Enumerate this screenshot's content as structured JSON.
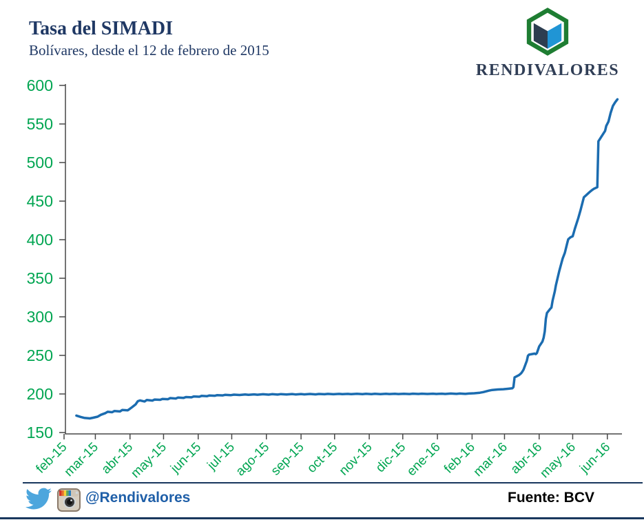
{
  "header": {
    "title": "Tasa del SIMADI",
    "subtitle": "Bolívares, desde el 12 de febrero de 2015",
    "logo_text": "RENDIVALORES"
  },
  "footer": {
    "social_handle": "@Rendivalores",
    "source": "Fuente: BCV"
  },
  "colors": {
    "title_navy": "#1f3864",
    "axis_green": "#00a551",
    "line_blue": "#1b6cb0",
    "axis_gray": "#474747",
    "handle_blue": "#1f5fa8",
    "separator_navy": "#17365d",
    "logo_green": "#1e7d32",
    "logo_cube_dark": "#2d3e50",
    "logo_cube_blue": "#2095d5",
    "twitter_blue": "#4da6dd",
    "source_black": "#000000"
  },
  "chart_data": {
    "type": "line",
    "title": "Tasa del SIMADI",
    "subtitle": "Bolívares, desde el 12 de febrero de 2015",
    "series_name": "Tasa del SIMADI",
    "grid": false,
    "legend": false,
    "ylim": [
      150,
      600
    ],
    "xlim": [
      "2015-02-12",
      "2016-06-10"
    ],
    "y_ticks": [
      600,
      550,
      500,
      450,
      400,
      350,
      300,
      250,
      200,
      150
    ],
    "x_ticks": [
      {
        "label": "feb-15",
        "date": "2015-02-01"
      },
      {
        "label": "mar-15",
        "date": "2015-03-01"
      },
      {
        "label": "abr-15",
        "date": "2015-04-01"
      },
      {
        "label": "may-15",
        "date": "2015-05-01"
      },
      {
        "label": "jun-15",
        "date": "2015-06-01"
      },
      {
        "label": "jul-15",
        "date": "2015-07-01"
      },
      {
        "label": "ago-15",
        "date": "2015-08-01"
      },
      {
        "label": "sep-15",
        "date": "2015-09-01"
      },
      {
        "label": "oct-15",
        "date": "2015-10-01"
      },
      {
        "label": "nov-15",
        "date": "2015-11-01"
      },
      {
        "label": "dic-15",
        "date": "2015-12-01"
      },
      {
        "label": "ene-16",
        "date": "2016-01-01"
      },
      {
        "label": "feb-16",
        "date": "2016-02-01"
      },
      {
        "label": "mar-16",
        "date": "2016-03-01"
      },
      {
        "label": "abr-16",
        "date": "2016-04-01"
      },
      {
        "label": "may-16",
        "date": "2016-05-01"
      },
      {
        "label": "jun-16",
        "date": "2016-06-01"
      }
    ],
    "points": [
      [
        "2015-02-12",
        172.0
      ],
      [
        "2015-02-16",
        170.2
      ],
      [
        "2015-02-19",
        169.0
      ],
      [
        "2015-02-24",
        168.3
      ],
      [
        "2015-02-27",
        169.2
      ],
      [
        "2015-03-03",
        170.5
      ],
      [
        "2015-03-06",
        173.0
      ],
      [
        "2015-03-10",
        175.2
      ],
      [
        "2015-03-12",
        176.9
      ],
      [
        "2015-03-16",
        176.3
      ],
      [
        "2015-03-18",
        177.9
      ],
      [
        "2015-03-23",
        177.3
      ],
      [
        "2015-03-25",
        179.2
      ],
      [
        "2015-03-30",
        178.8
      ],
      [
        "2015-04-01",
        180.9
      ],
      [
        "2015-04-03",
        183.0
      ],
      [
        "2015-04-06",
        186.5
      ],
      [
        "2015-04-08",
        190.6
      ],
      [
        "2015-04-10",
        191.6
      ],
      [
        "2015-04-14",
        190.3
      ],
      [
        "2015-04-16",
        192.1
      ],
      [
        "2015-04-21",
        191.4
      ],
      [
        "2015-04-23",
        192.8
      ],
      [
        "2015-04-28",
        192.4
      ],
      [
        "2015-04-30",
        193.6
      ],
      [
        "2015-05-05",
        193.2
      ],
      [
        "2015-05-07",
        194.6
      ],
      [
        "2015-05-12",
        194.1
      ],
      [
        "2015-05-14",
        195.4
      ],
      [
        "2015-05-19",
        194.9
      ],
      [
        "2015-05-21",
        196.0
      ],
      [
        "2015-05-26",
        195.6
      ],
      [
        "2015-05-28",
        196.8
      ],
      [
        "2015-06-02",
        196.4
      ],
      [
        "2015-06-04",
        197.5
      ],
      [
        "2015-06-09",
        197.1
      ],
      [
        "2015-06-11",
        198.0
      ],
      [
        "2015-06-16",
        197.7
      ],
      [
        "2015-06-18",
        198.5
      ],
      [
        "2015-06-23",
        198.1
      ],
      [
        "2015-06-25",
        198.8
      ],
      [
        "2015-06-30",
        198.4
      ],
      [
        "2015-07-03",
        199.1
      ],
      [
        "2015-07-08",
        198.7
      ],
      [
        "2015-07-13",
        199.4
      ],
      [
        "2015-07-16",
        198.9
      ],
      [
        "2015-07-21",
        199.5
      ],
      [
        "2015-07-24",
        199.0
      ],
      [
        "2015-07-29",
        199.6
      ],
      [
        "2015-08-03",
        199.1
      ],
      [
        "2015-08-06",
        199.7
      ],
      [
        "2015-08-11",
        199.2
      ],
      [
        "2015-08-14",
        199.8
      ],
      [
        "2015-08-19",
        199.3
      ],
      [
        "2015-08-24",
        199.9
      ],
      [
        "2015-08-27",
        199.4
      ],
      [
        "2015-09-01",
        199.9
      ],
      [
        "2015-09-04",
        199.5
      ],
      [
        "2015-09-09",
        200.0
      ],
      [
        "2015-09-14",
        199.5
      ],
      [
        "2015-09-17",
        200.0
      ],
      [
        "2015-09-22",
        199.6
      ],
      [
        "2015-09-25",
        200.1
      ],
      [
        "2015-09-30",
        199.6
      ],
      [
        "2015-10-05",
        200.1
      ],
      [
        "2015-10-08",
        199.7
      ],
      [
        "2015-10-13",
        200.1
      ],
      [
        "2015-10-16",
        199.7
      ],
      [
        "2015-10-21",
        200.2
      ],
      [
        "2015-10-26",
        199.8
      ],
      [
        "2015-10-29",
        200.2
      ],
      [
        "2015-11-03",
        199.8
      ],
      [
        "2015-11-06",
        200.2
      ],
      [
        "2015-11-11",
        199.8
      ],
      [
        "2015-11-16",
        200.3
      ],
      [
        "2015-11-19",
        199.9
      ],
      [
        "2015-11-24",
        200.3
      ],
      [
        "2015-11-27",
        199.9
      ],
      [
        "2015-12-02",
        200.3
      ],
      [
        "2015-12-07",
        199.9
      ],
      [
        "2015-12-10",
        200.4
      ],
      [
        "2015-12-15",
        200.0
      ],
      [
        "2015-12-18",
        200.4
      ],
      [
        "2015-12-23",
        200.0
      ],
      [
        "2015-12-28",
        200.4
      ],
      [
        "2015-12-31",
        200.0
      ],
      [
        "2016-01-05",
        200.4
      ],
      [
        "2016-01-08",
        200.0
      ],
      [
        "2016-01-13",
        200.5
      ],
      [
        "2016-01-18",
        200.1
      ],
      [
        "2016-01-21",
        200.5
      ],
      [
        "2016-01-26",
        200.1
      ],
      [
        "2016-01-29",
        200.5
      ],
      [
        "2016-02-03",
        200.9
      ],
      [
        "2016-02-08",
        201.6
      ],
      [
        "2016-02-11",
        202.4
      ],
      [
        "2016-02-16",
        204.3
      ],
      [
        "2016-02-19",
        205.2
      ],
      [
        "2016-02-24",
        205.8
      ],
      [
        "2016-02-29",
        206.2
      ],
      [
        "2016-03-04",
        206.7
      ],
      [
        "2016-03-08",
        207.3
      ],
      [
        "2016-03-09",
        208.8
      ],
      [
        "2016-03-10",
        221.5
      ],
      [
        "2016-03-14",
        224.5
      ],
      [
        "2016-03-16",
        227.0
      ],
      [
        "2016-03-17",
        229.0
      ],
      [
        "2016-03-18",
        231.5
      ],
      [
        "2016-03-21",
        243.0
      ],
      [
        "2016-03-22",
        249.5
      ],
      [
        "2016-03-23",
        251.0
      ],
      [
        "2016-03-28",
        252.3
      ],
      [
        "2016-03-29",
        251.6
      ],
      [
        "2016-03-30",
        253.0
      ],
      [
        "2016-04-01",
        261.5
      ],
      [
        "2016-04-04",
        268.0
      ],
      [
        "2016-04-05",
        273.0
      ],
      [
        "2016-04-06",
        281.0
      ],
      [
        "2016-04-07",
        297.5
      ],
      [
        "2016-04-08",
        305.0
      ],
      [
        "2016-04-11",
        310.5
      ],
      [
        "2016-04-12",
        312.0
      ],
      [
        "2016-04-13",
        321.0
      ],
      [
        "2016-04-15",
        333.0
      ],
      [
        "2016-04-16",
        341.0
      ],
      [
        "2016-04-19",
        359.5
      ],
      [
        "2016-04-21",
        370.0
      ],
      [
        "2016-04-22",
        375.5
      ],
      [
        "2016-04-24",
        383.0
      ],
      [
        "2016-04-26",
        395.0
      ],
      [
        "2016-04-27",
        400.5
      ],
      [
        "2016-04-29",
        403.0
      ],
      [
        "2016-05-01",
        404.5
      ],
      [
        "2016-05-03",
        414.5
      ],
      [
        "2016-05-06",
        428.0
      ],
      [
        "2016-05-08",
        438.0
      ],
      [
        "2016-05-10",
        449.5
      ],
      [
        "2016-05-11",
        455.0
      ],
      [
        "2016-05-13",
        457.5
      ],
      [
        "2016-05-16",
        461.5
      ],
      [
        "2016-05-18",
        464.0
      ],
      [
        "2016-05-20",
        466.0
      ],
      [
        "2016-05-23",
        468.0
      ],
      [
        "2016-05-24",
        527.5
      ],
      [
        "2016-05-26",
        532.0
      ],
      [
        "2016-05-30",
        541.0
      ],
      [
        "2016-05-31",
        547.5
      ],
      [
        "2016-06-02",
        553.0
      ],
      [
        "2016-06-04",
        564.5
      ],
      [
        "2016-06-06",
        573.5
      ],
      [
        "2016-06-08",
        578.0
      ],
      [
        "2016-06-10",
        582.0
      ]
    ]
  }
}
